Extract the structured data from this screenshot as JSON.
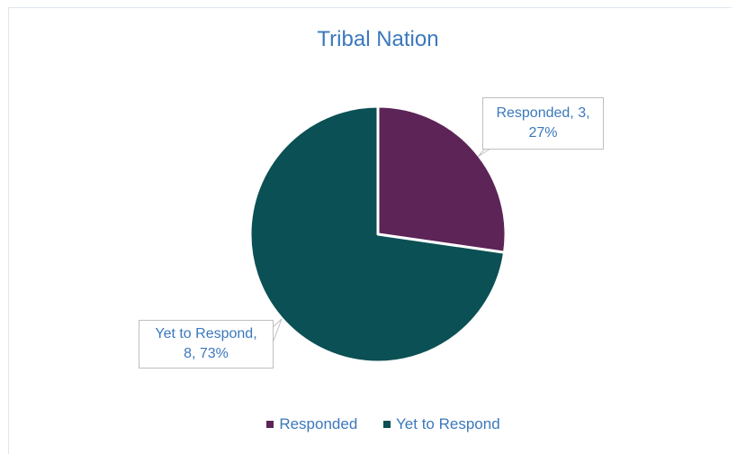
{
  "chart_data": {
    "type": "pie",
    "title": "Tribal Nation",
    "slices": [
      {
        "label": "Responded",
        "value": 3,
        "percent": "27%",
        "color": "#5c2457"
      },
      {
        "label": "Yet to Respond",
        "value": 8,
        "percent": "73%",
        "color": "#0b5054"
      }
    ],
    "data_labels": [
      {
        "line1": "Responded, 3,",
        "line2": "27%"
      },
      {
        "line1": "Yet to Respond,",
        "line2": "8, 73%"
      }
    ],
    "legend_position": "bottom",
    "legend": [
      {
        "label": "Responded",
        "color": "#5c2457"
      },
      {
        "label": "Yet to Respond",
        "color": "#0b5054"
      }
    ]
  },
  "colors": {
    "text_accent": "#3b78bd",
    "slice_border": "#ffffff"
  }
}
